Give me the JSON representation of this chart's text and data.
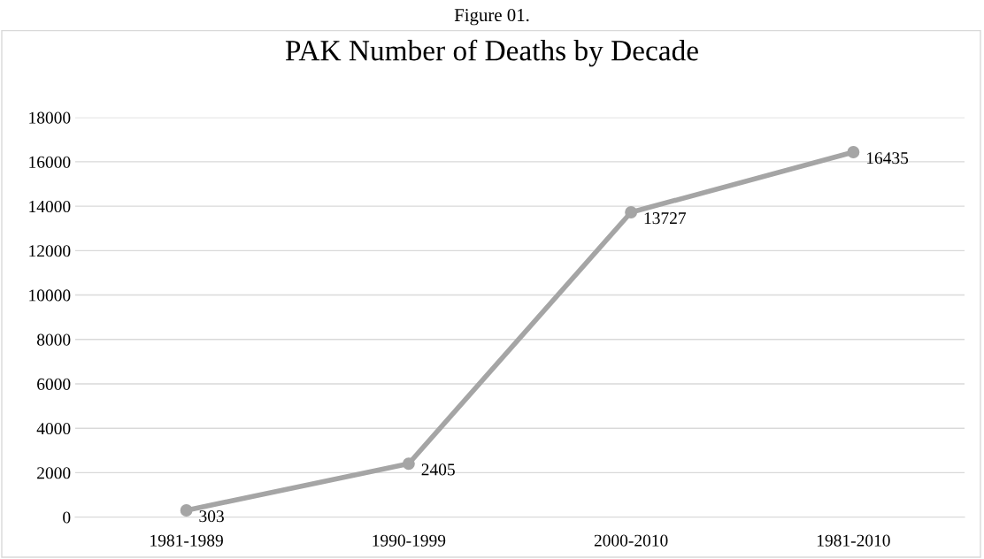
{
  "chart_data": {
    "type": "line",
    "title": "PAK Number of Deaths by Decade",
    "annotations": [
      "Figure 01."
    ],
    "categories": [
      "1981-1989",
      "1990-1999",
      "2000-2010",
      "1981-2010"
    ],
    "series": [
      {
        "color": "#a5a5a5",
        "values": [
          303,
          2405,
          13727,
          16435
        ]
      }
    ],
    "ylim": [
      0,
      18000
    ],
    "yticks": [
      0,
      2000,
      4000,
      6000,
      8000,
      10000,
      12000,
      14000,
      16000,
      18000
    ],
    "grid": "y",
    "marker": "circle",
    "line_style": "solid",
    "data_labels": true,
    "legend": false
  }
}
